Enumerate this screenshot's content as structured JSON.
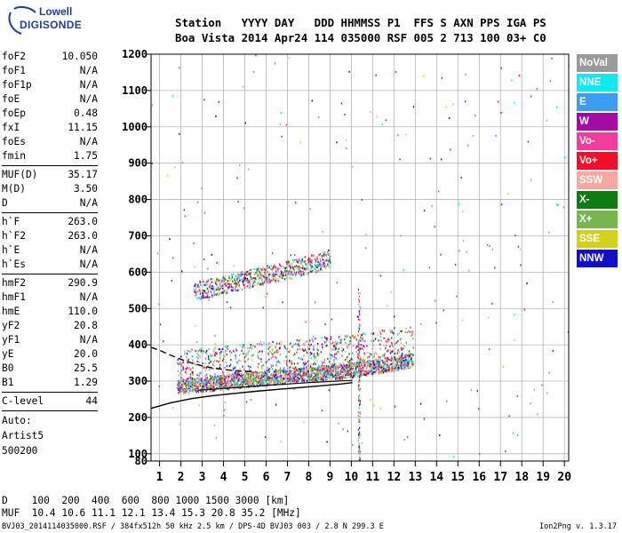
{
  "logo": {
    "line1": "Lowell",
    "line2": "DIGISONDE"
  },
  "header": {
    "labels": "Station   YYYY DAY   DDD HHMMSS P1  FFS S AXN PPS IGA PS",
    "values": "Boa Vista 2014 Apr24 114 035000 RSF 005 2 713 100 03+ C0"
  },
  "params": {
    "group1": [
      {
        "name": "foF2",
        "value": "10.050"
      },
      {
        "name": "foF1",
        "value": "N/A"
      },
      {
        "name": "foF1p",
        "value": "N/A"
      },
      {
        "name": "foE",
        "value": "N/A"
      },
      {
        "name": "foEp",
        "value": "0.48"
      },
      {
        "name": "fxI",
        "value": "11.15"
      },
      {
        "name": "foEs",
        "value": "N/A"
      },
      {
        "name": "fmin",
        "value": "1.75"
      }
    ],
    "group2": [
      {
        "name": "MUF(D)",
        "value": "35.17"
      },
      {
        "name": "M(D)",
        "value": "3.50"
      },
      {
        "name": "D",
        "value": "N/A"
      }
    ],
    "group3": [
      {
        "name": "h`F",
        "value": "263.0"
      },
      {
        "name": "h`F2",
        "value": "263.0"
      },
      {
        "name": "h`E",
        "value": "N/A"
      },
      {
        "name": "h`Es",
        "value": "N/A"
      }
    ],
    "group4": [
      {
        "name": "hmF2",
        "value": "290.9"
      },
      {
        "name": "hmF1",
        "value": "N/A"
      },
      {
        "name": "hmE",
        "value": "110.0"
      },
      {
        "name": "yF2",
        "value": "20.8"
      },
      {
        "name": "yF1",
        "value": "N/A"
      },
      {
        "name": "yE",
        "value": "20.0"
      },
      {
        "name": "B0",
        "value": "25.5"
      },
      {
        "name": "B1",
        "value": "1.29"
      }
    ],
    "group5": [
      {
        "name": "C-level",
        "value": "44"
      }
    ],
    "auto": {
      "line1": "Auto:",
      "line2": "Artist5",
      "line3": "500200"
    }
  },
  "legend": [
    {
      "label": "NoVal",
      "color": "#9a9a9a"
    },
    {
      "label": "NNE",
      "color": "#14e6f2"
    },
    {
      "label": "E",
      "color": "#3c9cf2"
    },
    {
      "label": "W",
      "color": "#a50aa5"
    },
    {
      "label": "Vo-",
      "color": "#f23c9c"
    },
    {
      "label": "Vo+",
      "color": "#f0102a"
    },
    {
      "label": "SSW",
      "color": "#f4a8a0"
    },
    {
      "label": "X-",
      "color": "#107c10"
    },
    {
      "label": "X+",
      "color": "#78b450"
    },
    {
      "label": "SSE",
      "color": "#d2d21e"
    },
    {
      "label": "NNW",
      "color": "#1010c8"
    }
  ],
  "bottom": {
    "d_row": "D    100  200  400  600  800 1000 1500 3000 [km]",
    "muf_row": "MUF  10.4 10.6 11.1 12.1 13.4 15.3 20.8 35.2 [MHz]"
  },
  "footer": "BVJ03_2014114035000.RSF / 384fx512h 50 kHz 2.5 km / DPS-4D BVJ03 003 / 2.8 N 299.3 E",
  "version": "Ion2Png v. 1.3.17",
  "chart_data": {
    "type": "scatter",
    "xlim": [
      0.6,
      20.2
    ],
    "ylim": [
      80,
      1200
    ],
    "x_ticks": [
      1,
      2,
      3,
      4,
      5,
      6,
      7,
      8,
      9,
      10,
      11,
      12,
      13,
      14,
      15,
      16,
      17,
      18,
      19,
      20
    ],
    "y_ticks": [
      80,
      100,
      200,
      300,
      400,
      500,
      600,
      700,
      800,
      900,
      1000,
      1100,
      1200
    ],
    "grid": true,
    "traces": [
      {
        "name": "F2 O-trace",
        "x": [
          1.8,
          2.5,
          3.5,
          4.5,
          5.5,
          6.5,
          7.5,
          8.5,
          9.5,
          10.0,
          10.5,
          11.5,
          12.5,
          12.9
        ],
        "y": [
          275,
          280,
          285,
          292,
          297,
          303,
          308,
          313,
          318,
          322,
          327,
          335,
          345,
          350
        ]
      },
      {
        "name": "F2 second-hop trace",
        "x": [
          2.6,
          3.5,
          4.5,
          5.5,
          6.5,
          7.5,
          8.5,
          9.0
        ],
        "y": [
          545,
          555,
          570,
          583,
          596,
          610,
          625,
          635
        ]
      },
      {
        "name": "profile solid",
        "x": [
          0.6,
          1.5,
          2.5,
          3.5,
          4.5,
          5.5,
          6.5,
          7.5,
          8.5,
          9.5,
          10.05
        ],
        "y": [
          225,
          240,
          252,
          260,
          266,
          272,
          277,
          282,
          287,
          292,
          296
        ]
      },
      {
        "name": "profile dashed",
        "x": [
          0.6,
          1.0,
          1.5,
          2.0,
          2.5,
          3.0,
          3.5,
          4.0,
          4.5,
          5.0,
          5.5
        ],
        "y": [
          393,
          385,
          372,
          360,
          350,
          342,
          336,
          332,
          329,
          327,
          326
        ]
      },
      {
        "name": "profile lower",
        "x": [
          2.8,
          4,
          5,
          6,
          7,
          8,
          9,
          10.05
        ],
        "y": [
          275,
          280,
          284,
          288,
          292,
          296,
          299,
          302
        ]
      }
    ]
  }
}
